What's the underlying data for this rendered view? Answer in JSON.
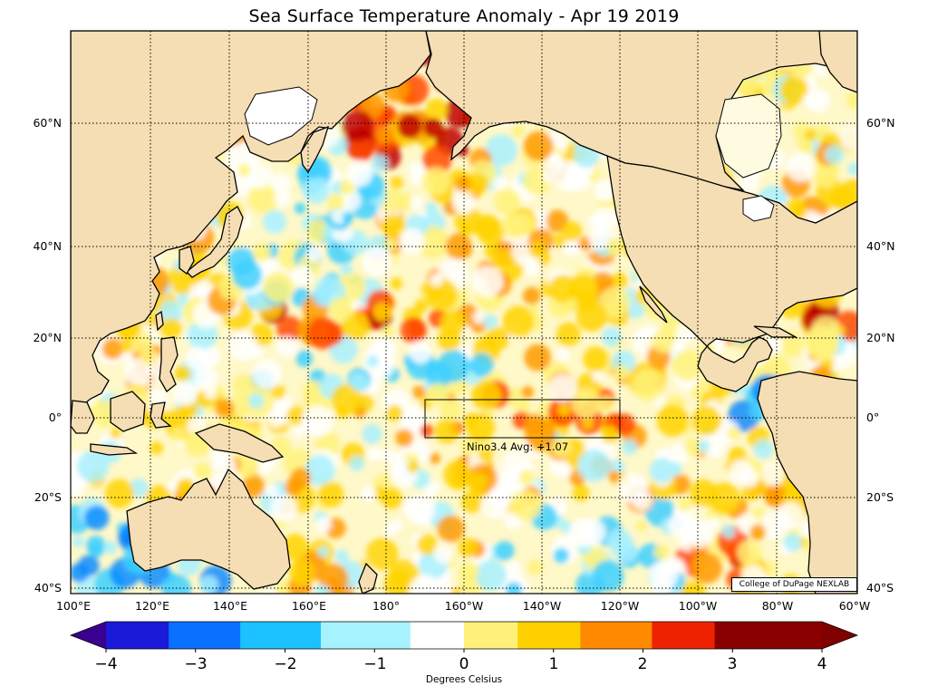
{
  "title": "Sea Surface Temperature Anomaly - Apr 19 2019",
  "map": {
    "region": "Pacific Ocean",
    "latitude_labels": [
      "60°N",
      "40°N",
      "20°N",
      "0°",
      "20°S",
      "40°S"
    ],
    "longitude_labels": [
      "100°E",
      "120°E",
      "140°E",
      "160°E",
      "180°",
      "160°W",
      "140°W",
      "120°W",
      "100°W",
      "80°W",
      "60°W"
    ],
    "gridlines": true,
    "land_color": "#f5deb3",
    "ocean_no_anomaly_color": "#ffffff",
    "nino_box": {
      "name": "Nino3.4",
      "label": "Nino3.4 Avg: +1.07",
      "avg_anomaly": 1.07
    },
    "credit": "College of DuPage NEXLAB"
  },
  "colorbar": {
    "min": -4,
    "max": 4,
    "ticks": [
      "−4",
      "−3",
      "−2",
      "−1",
      "0",
      "1",
      "2",
      "3",
      "4"
    ],
    "caption": "Degrees Celsius",
    "colors": [
      "#3d0090",
      "#1a1acc",
      "#0a6cff",
      "#20b8ff",
      "#7fe8ff",
      "#ffffff",
      "#fff27a",
      "#ffd400",
      "#ff8c00",
      "#ee2a00",
      "#b00000",
      "#8a0000"
    ]
  }
}
